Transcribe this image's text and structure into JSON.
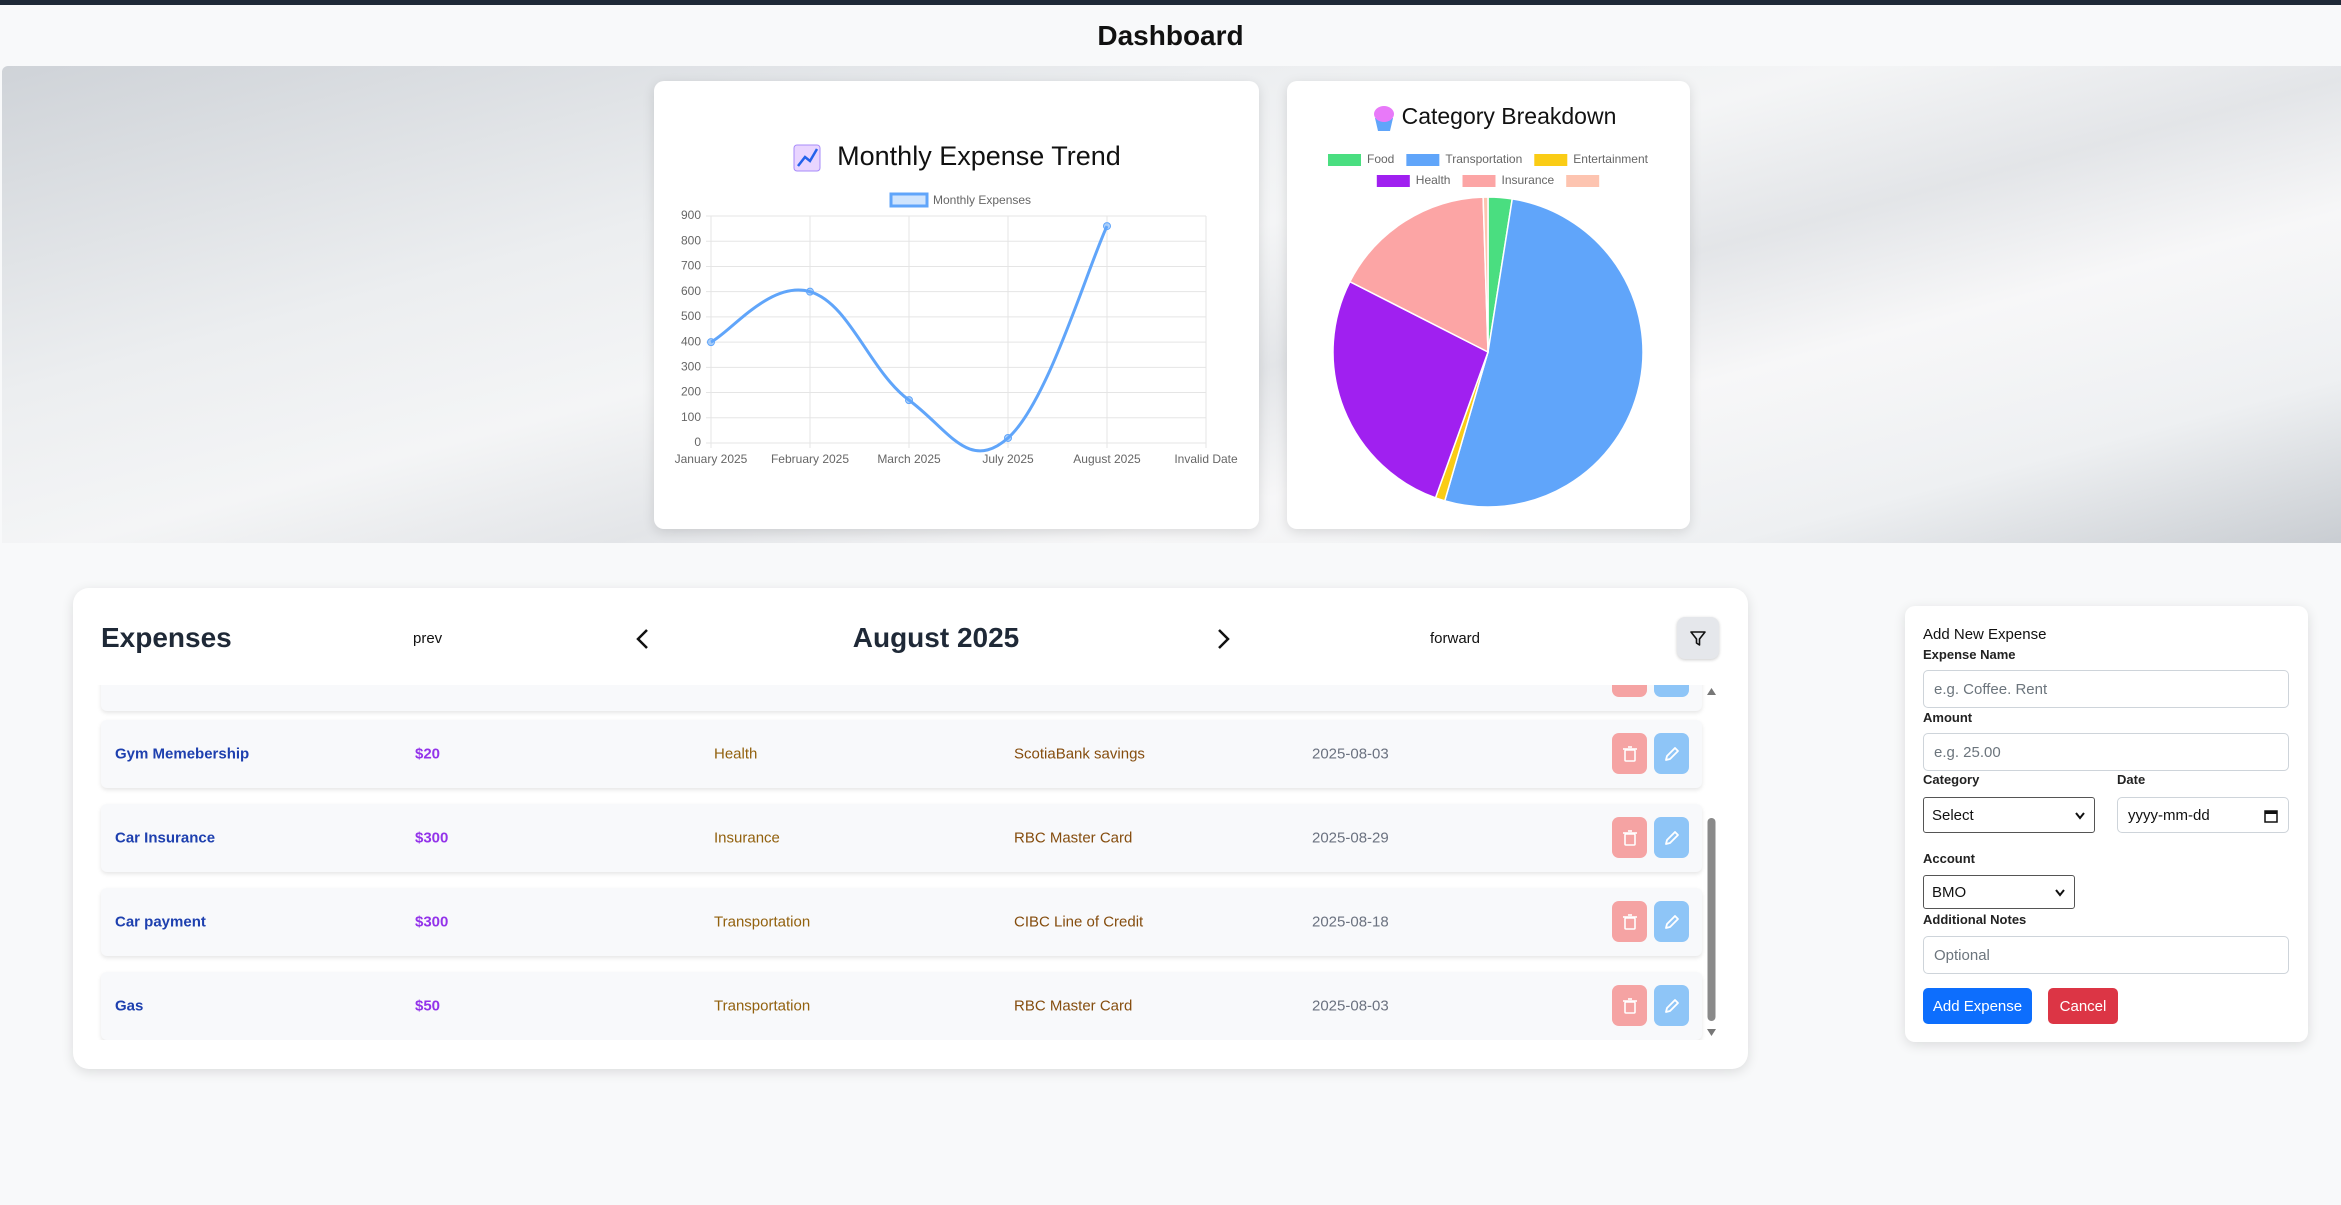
{
  "header": {
    "title": "Dashboard"
  },
  "chart_data": [
    {
      "type": "line",
      "title": "Monthly Expense Trend",
      "categories": [
        "January 2025",
        "February 2025",
        "March 2025",
        "July 2025",
        "August 2025",
        "Invalid Date"
      ],
      "series": [
        {
          "name": "Monthly Expenses",
          "color": "#60a5fa",
          "values": [
            400,
            600,
            170,
            20,
            860,
            null
          ]
        }
      ],
      "ylim": [
        0,
        900
      ],
      "yticks": [
        0,
        100,
        200,
        300,
        400,
        500,
        600,
        700,
        800,
        900
      ],
      "grid": true
    },
    {
      "type": "pie",
      "title": "Category Breakdown",
      "categories": [
        "Food",
        "Transportation",
        "Entertainment",
        "Health",
        "Insurance",
        null
      ],
      "values": [
        2.5,
        52,
        1,
        27,
        17,
        0.5
      ],
      "colors": [
        "#4ade80",
        "#60a5fa",
        "#facc15",
        "#a020f0",
        "#fca5a5",
        "#fdc4b0"
      ]
    }
  ],
  "expenses": {
    "title": "Expenses",
    "prev": "prev",
    "month": "August 2025",
    "forward": "forward",
    "rows": [
      [
        "Gym Memebership",
        "$20",
        "Health",
        "ScotiaBank savings",
        "2025-08-03"
      ],
      [
        "Car Insurance",
        "$300",
        "Insurance",
        "RBC Master Card",
        "2025-08-29"
      ],
      [
        "Car payment",
        "$300",
        "Transportation",
        "CIBC Line of Credit",
        "2025-08-18"
      ],
      [
        "Gas",
        "$50",
        "Transportation",
        "RBC Master Card",
        "2025-08-03"
      ]
    ]
  },
  "form": {
    "title": "Add New Expense",
    "name_label": "Expense Name",
    "name_placeholder": "e.g. Coffee. Rent",
    "amount_label": "Amount",
    "amount_placeholder": "e.g. 25.00",
    "category_label": "Category",
    "category_value": "Select",
    "date_label": "Date",
    "date_placeholder": "yyyy-mm-dd",
    "account_label": "Account",
    "account_value": "BMO",
    "notes_label": "Additional Notes",
    "notes_placeholder": "Optional",
    "submit": "Add Expense",
    "cancel": "Cancel"
  }
}
